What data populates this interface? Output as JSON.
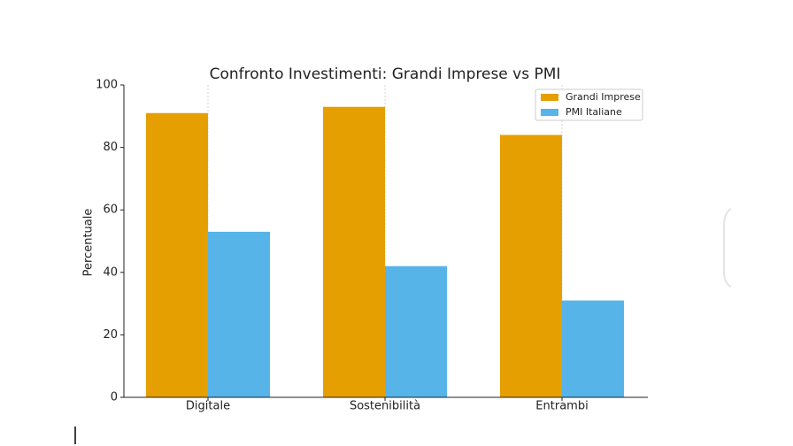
{
  "chart_data": {
    "type": "bar",
    "title": "Confronto Investimenti: Grandi Imprese vs PMI",
    "y_label": "Percentuale",
    "categories": [
      "Digitale",
      "Sostenibilità",
      "Entrambi"
    ],
    "series": [
      {
        "name": "Grandi Imprese",
        "color": "#e69f00",
        "values": [
          91,
          93,
          84
        ]
      },
      {
        "name": "PMI Italiane",
        "color": "#56b4e9",
        "values": [
          53,
          42,
          31
        ]
      }
    ],
    "ylim": [
      0,
      100
    ],
    "yticks": [
      0,
      20,
      40,
      60,
      80,
      100
    ],
    "xgrid": true,
    "legend": "upper right"
  }
}
